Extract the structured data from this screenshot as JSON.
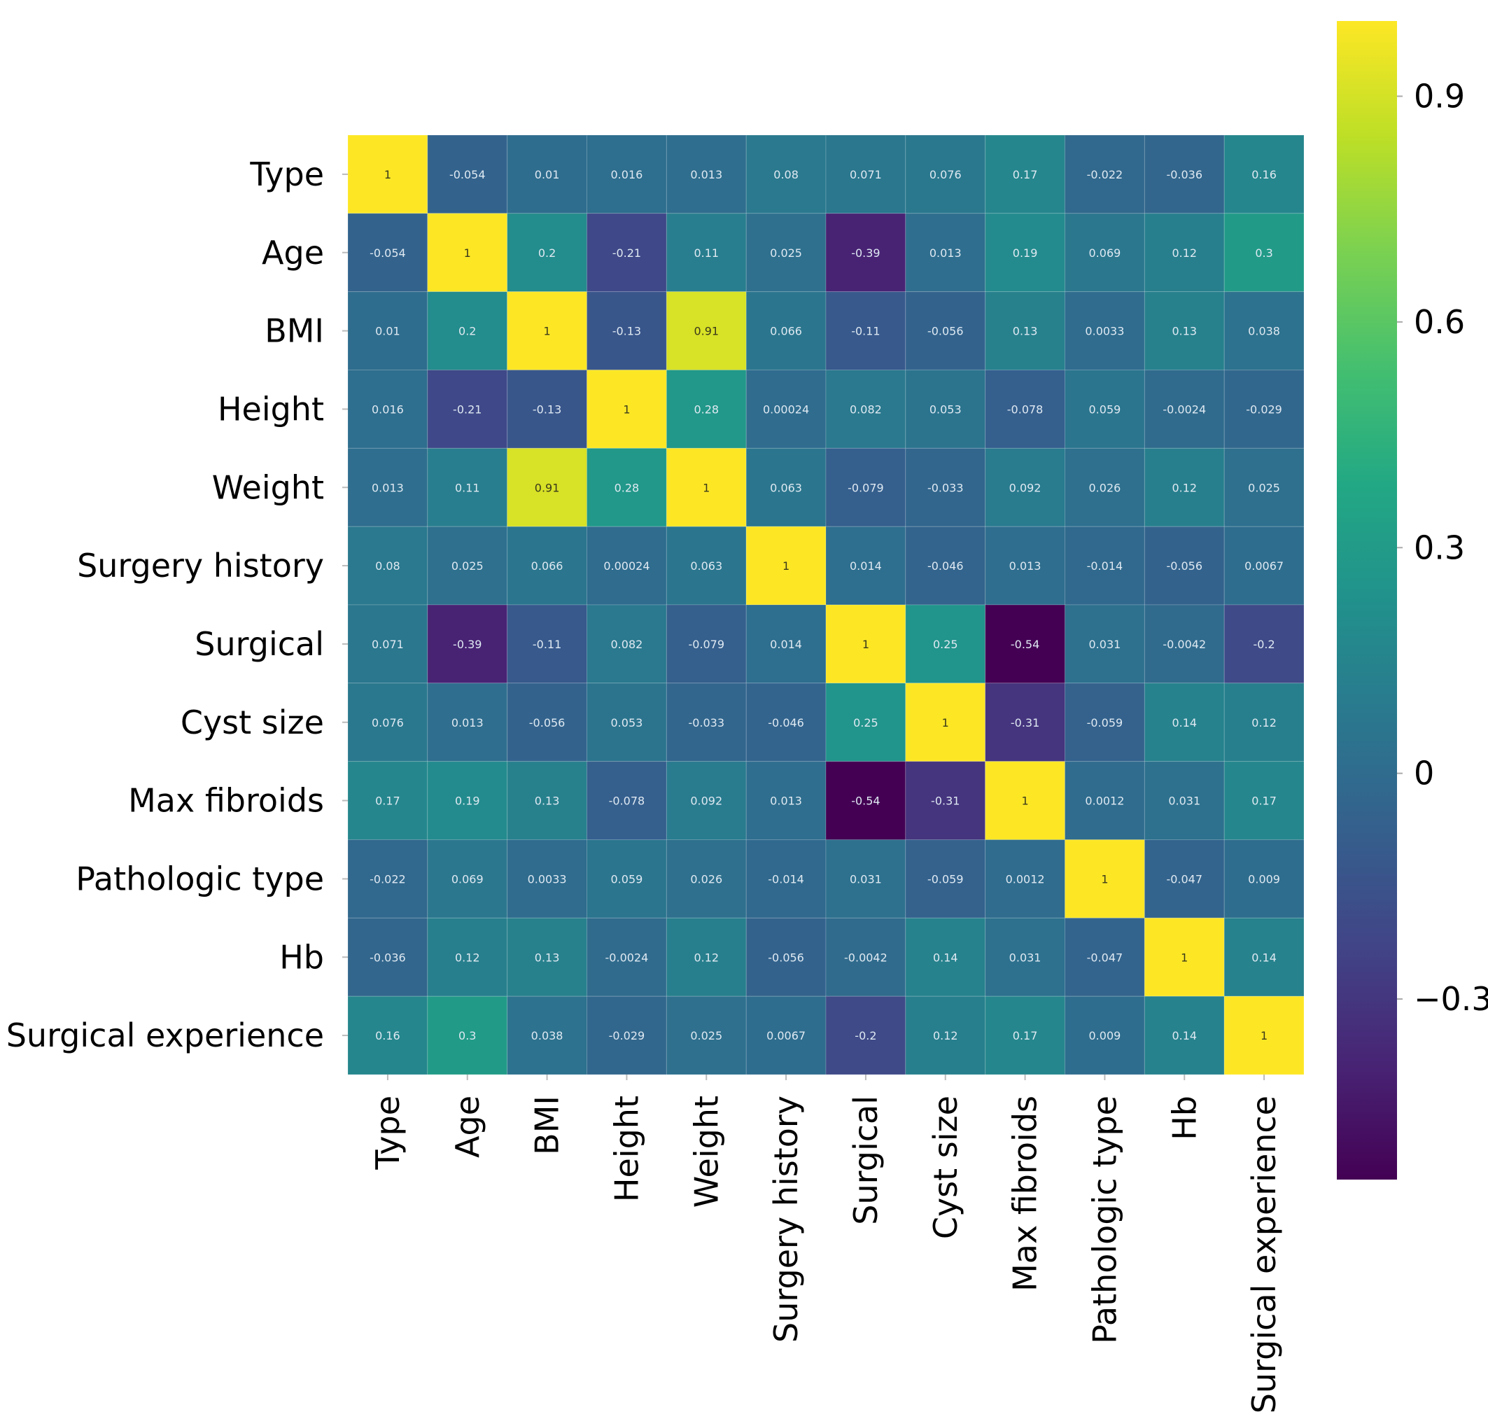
{
  "chart_data": {
    "type": "heatmap",
    "title": "",
    "xlabel": "",
    "ylabel": "",
    "colormap": "viridis",
    "annotated": true,
    "labels": [
      "Type",
      "Age",
      "BMI",
      "Height",
      "Weight",
      "Surgery history",
      "Surgical",
      "Cyst size",
      "Max fibroids",
      "Pathologic type",
      "Hb",
      "Surgical experience"
    ],
    "matrix": [
      [
        1,
        -0.054,
        0.01,
        0.016,
        0.013,
        0.08,
        0.071,
        0.076,
        0.17,
        -0.022,
        -0.036,
        0.16
      ],
      [
        -0.054,
        1,
        0.2,
        -0.21,
        0.11,
        0.025,
        -0.39,
        0.013,
        0.19,
        0.069,
        0.12,
        0.3
      ],
      [
        0.01,
        0.2,
        1,
        -0.13,
        0.91,
        0.066,
        -0.11,
        -0.056,
        0.13,
        0.0033,
        0.13,
        0.038
      ],
      [
        0.016,
        -0.21,
        -0.13,
        1,
        0.28,
        0.00024,
        0.082,
        0.053,
        -0.078,
        0.059,
        -0.0024,
        -0.029
      ],
      [
        0.013,
        0.11,
        0.91,
        0.28,
        1,
        0.063,
        -0.079,
        -0.033,
        0.092,
        0.026,
        0.12,
        0.025
      ],
      [
        0.08,
        0.025,
        0.066,
        0.00024,
        0.063,
        1,
        0.014,
        -0.046,
        0.013,
        -0.014,
        -0.056,
        0.0067
      ],
      [
        0.071,
        -0.39,
        -0.11,
        0.082,
        -0.079,
        0.014,
        1,
        0.25,
        -0.54,
        0.031,
        -0.0042,
        -0.2
      ],
      [
        0.076,
        0.013,
        -0.056,
        0.053,
        -0.033,
        -0.046,
        0.25,
        1,
        -0.31,
        -0.059,
        0.14,
        0.12
      ],
      [
        0.17,
        0.19,
        0.13,
        -0.078,
        0.092,
        0.013,
        -0.54,
        -0.31,
        1,
        0.0012,
        0.031,
        0.17
      ],
      [
        -0.022,
        0.069,
        0.0033,
        0.059,
        0.026,
        -0.014,
        0.031,
        -0.059,
        0.0012,
        1,
        -0.047,
        0.009
      ],
      [
        -0.036,
        0.12,
        0.13,
        -0.0024,
        0.12,
        -0.056,
        -0.0042,
        0.14,
        0.031,
        -0.047,
        1,
        0.14
      ],
      [
        0.16,
        0.3,
        0.038,
        -0.029,
        0.025,
        0.0067,
        -0.2,
        0.12,
        0.17,
        0.009,
        0.14,
        1
      ]
    ],
    "colorbar": {
      "vmin": -0.54,
      "vmax": 1,
      "ticks": [
        0.9,
        0.6,
        0.3,
        0,
        -0.3
      ],
      "tick_labels": [
        "0.9",
        "0.6",
        "0.3",
        "0",
        "−0.3"
      ],
      "position": "right"
    },
    "grid": false
  }
}
